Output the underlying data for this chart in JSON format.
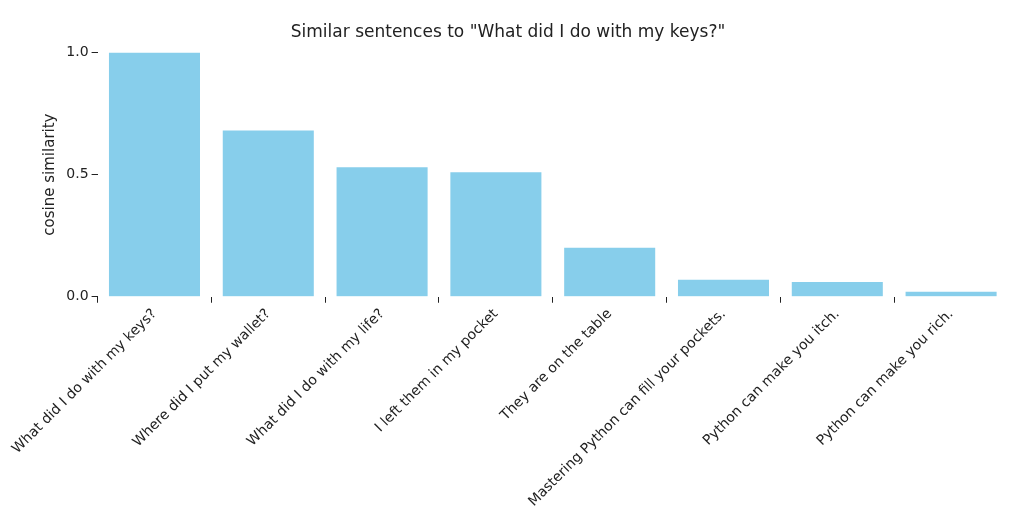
{
  "chart_data": {
    "type": "bar",
    "title": "Similar sentences to \"What did I do with my keys?\"",
    "ylabel": "cosine similarity",
    "categories": [
      "What did I do with my keys?",
      "Where did I put my wallet?",
      "What did I do with my life?",
      "I left them in my pocket",
      "They are on the table",
      "Mastering Python can fill your pockets.",
      "Python can make you itch.",
      "Python can make you rich."
    ],
    "values": [
      1.0,
      0.68,
      0.53,
      0.51,
      0.2,
      0.07,
      0.06,
      0.02
    ],
    "color": "#87ceeb",
    "ylim": [
      0,
      1
    ],
    "yticks": [
      {
        "value": 0,
        "label": "0.0"
      },
      {
        "value": 0.5,
        "label": "0.5"
      },
      {
        "value": 1,
        "label": "1.0"
      }
    ],
    "grid": false,
    "legend": false
  }
}
